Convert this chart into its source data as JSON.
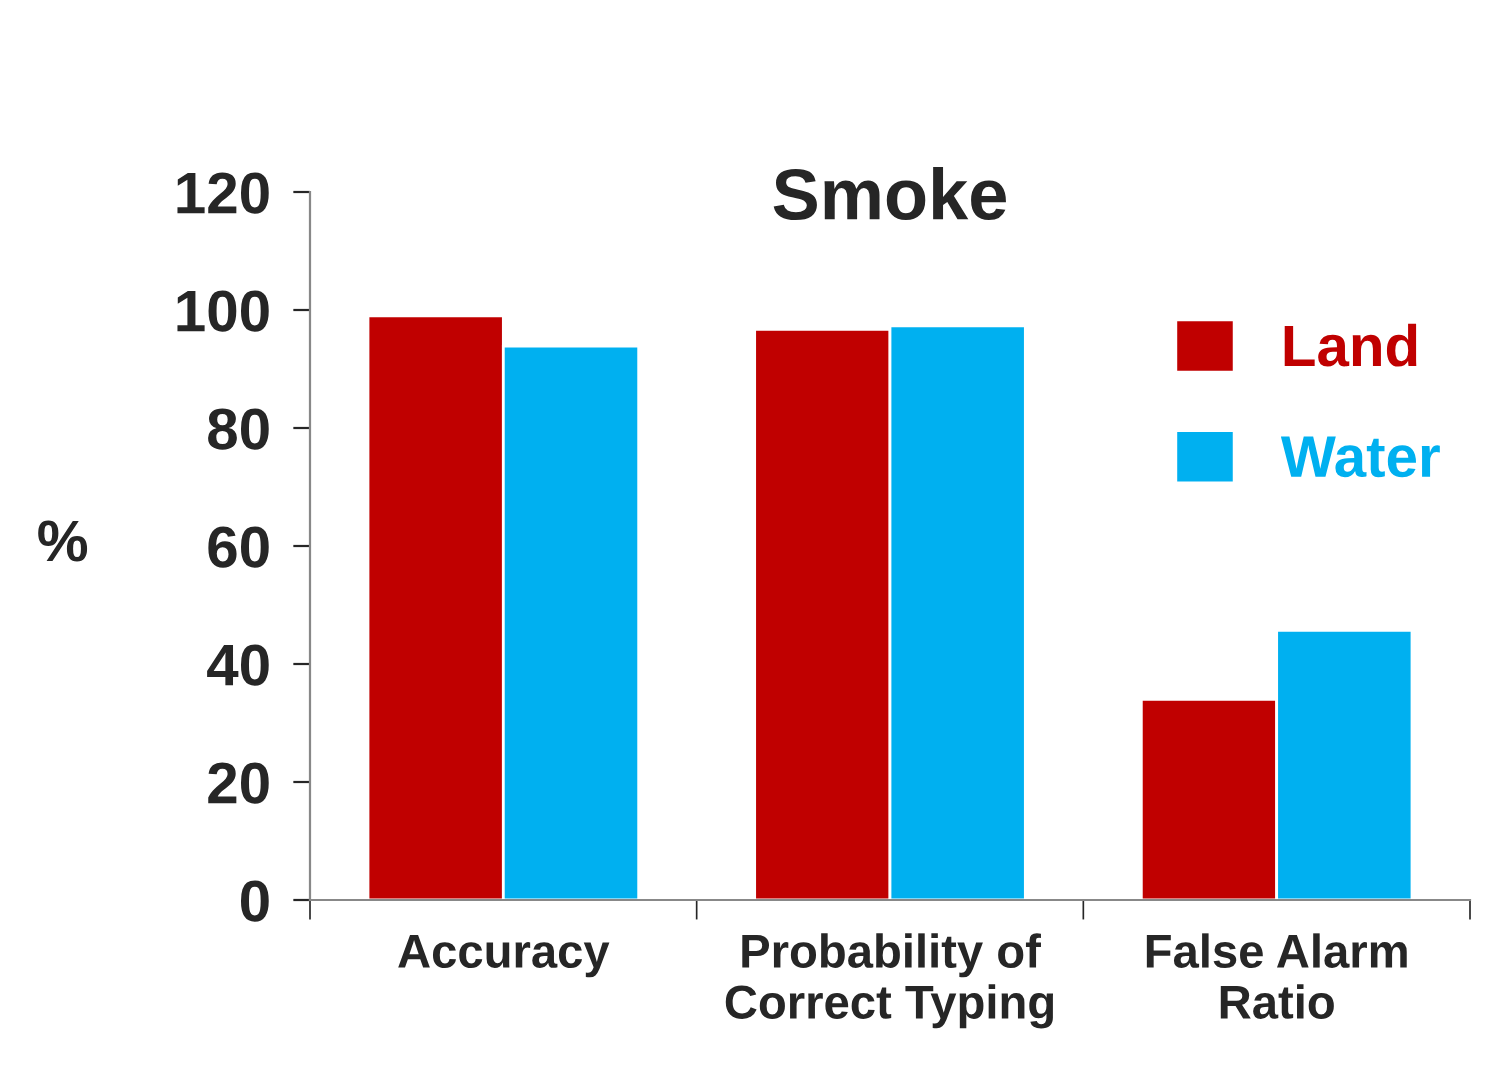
{
  "chart_data": {
    "type": "bar",
    "title": "Smoke",
    "ylabel": "%",
    "categories": [
      "Accuracy",
      "Probability of\nCorrect Typing",
      "False Alarm\nRatio"
    ],
    "series": [
      {
        "name": "Land",
        "color": "#c00000",
        "values": [
          99,
          96.7,
          34
        ]
      },
      {
        "name": "Water",
        "color": "#00b0f0",
        "values": [
          93.9,
          97.3,
          45.7
        ]
      }
    ],
    "ylim": [
      0,
      120
    ],
    "yticks": [
      0,
      20,
      40,
      60,
      80,
      100,
      120
    ],
    "grid": false,
    "legend": "right"
  }
}
